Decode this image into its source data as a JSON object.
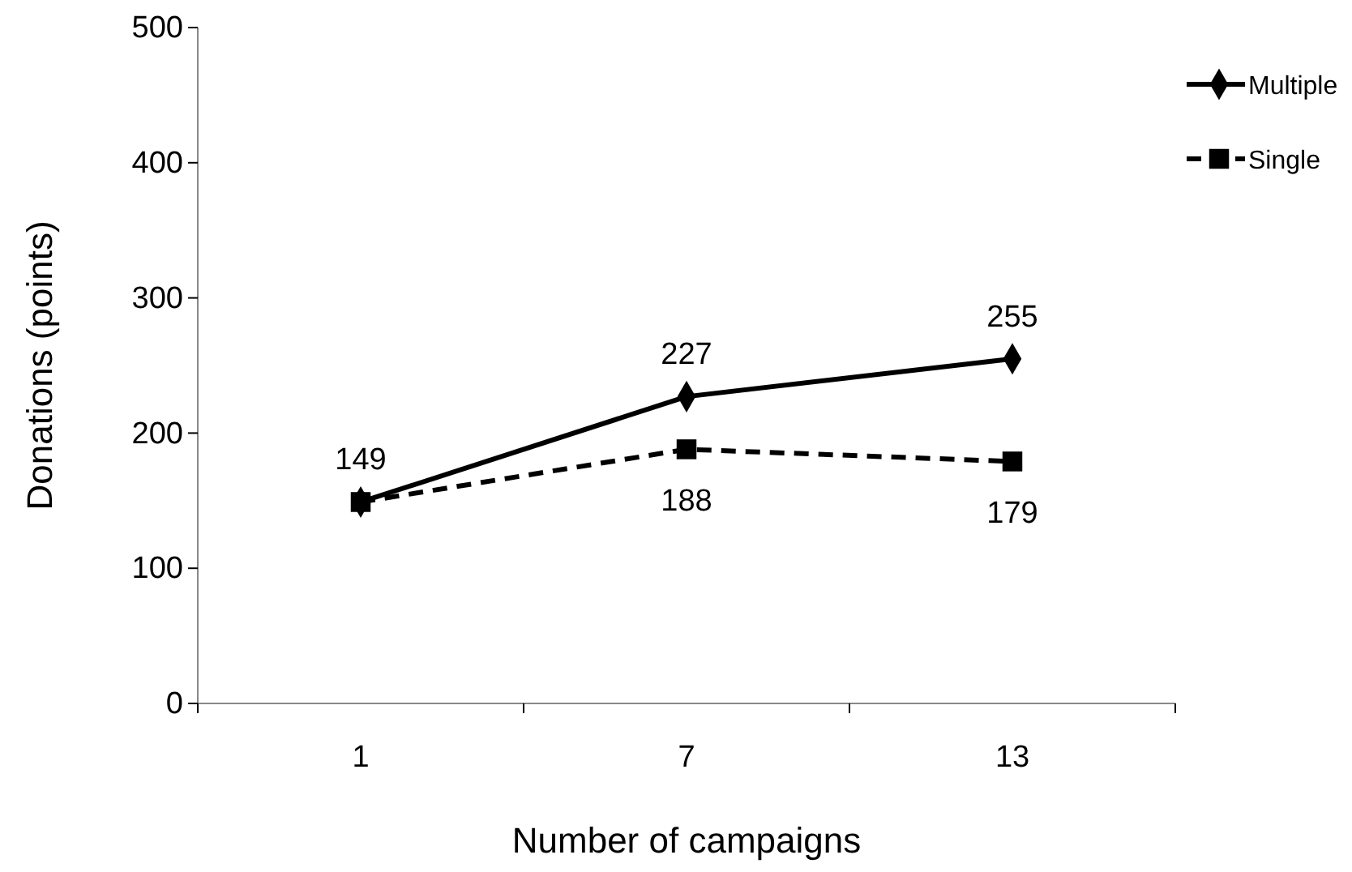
{
  "chart_data": {
    "type": "line",
    "xlabel": "Number of campaigns",
    "ylabel": "Donations (points)",
    "categories": [
      "1",
      "7",
      "13"
    ],
    "series": [
      {
        "name": "Multiple",
        "color": "#000000",
        "values": [
          149,
          227,
          255
        ],
        "marker": "diamond",
        "line_style": "solid",
        "value_labels": [
          "149",
          "227",
          "255"
        ]
      },
      {
        "name": "Single",
        "color": "#000000",
        "values": [
          149,
          188,
          179
        ],
        "marker": "square",
        "line_style": "dashed",
        "value_labels": [
          null,
          "188",
          "179"
        ]
      }
    ],
    "ylim": [
      0,
      500
    ],
    "yticks": [
      0,
      100,
      200,
      300,
      400,
      500
    ],
    "grid": false,
    "legend": "top right"
  }
}
